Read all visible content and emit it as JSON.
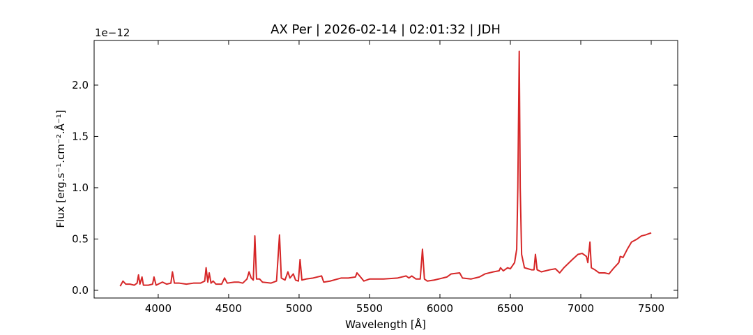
{
  "chart_data": {
    "type": "line",
    "title": "AX Per | 2026-02-14 | 02:01:32 | JDH",
    "xlabel": "Wavelength [Å]",
    "ylabel": "Flux [erg.s⁻¹.cm⁻².Å⁻¹]",
    "y_offset_text": "1e−12",
    "xlim": [
      3545,
      7688
    ],
    "ylim": [
      -0.075,
      2.435
    ],
    "xticks": [
      4000,
      4500,
      5000,
      5500,
      6000,
      6500,
      7000,
      7500
    ],
    "yticks": [
      {
        "value": 0,
        "label": "0.0"
      },
      0.5,
      {
        "value": 1,
        "label": "1.0"
      },
      1.5,
      {
        "value": 2,
        "label": "2.0"
      }
    ],
    "grid": false,
    "series": [
      {
        "color": "#d62728",
        "x": [
          3730,
          3750,
          3770,
          3800,
          3830,
          3850,
          3860,
          3870,
          3885,
          3895,
          3930,
          3960,
          3970,
          3985,
          4030,
          4060,
          4090,
          4101,
          4115,
          4150,
          4200,
          4250,
          4300,
          4330,
          4340,
          4352,
          4362,
          4375,
          4390,
          4410,
          4450,
          4471,
          4490,
          4540,
          4570,
          4600,
          4630,
          4645,
          4660,
          4675,
          4686,
          4698,
          4720,
          4740,
          4800,
          4840,
          4861,
          4874,
          4900,
          4921,
          4935,
          4959,
          4975,
          4995,
          5007,
          5020,
          5050,
          5100,
          5160,
          5175,
          5220,
          5300,
          5350,
          5400,
          5411,
          5430,
          5460,
          5500,
          5550,
          5600,
          5700,
          5760,
          5780,
          5800,
          5830,
          5860,
          5876,
          5890,
          5910,
          5960,
          6050,
          6080,
          6140,
          6160,
          6220,
          6280,
          6320,
          6380,
          6420,
          6430,
          6450,
          6480,
          6500,
          6530,
          6545,
          6553,
          6563,
          6570,
          6580,
          6600,
          6650,
          6668,
          6678,
          6690,
          6720,
          6780,
          6820,
          6850,
          6880,
          6940,
          6980,
          7010,
          7040,
          7050,
          7065,
          7075,
          7100,
          7130,
          7170,
          7200,
          7230,
          7270,
          7280,
          7300,
          7330,
          7360,
          7400,
          7430,
          7460,
          7480,
          7500
        ],
        "values": [
          0.04,
          0.09,
          0.06,
          0.06,
          0.05,
          0.07,
          0.15,
          0.06,
          0.13,
          0.05,
          0.05,
          0.06,
          0.13,
          0.05,
          0.08,
          0.06,
          0.07,
          0.18,
          0.07,
          0.07,
          0.06,
          0.07,
          0.07,
          0.09,
          0.22,
          0.08,
          0.17,
          0.07,
          0.09,
          0.06,
          0.06,
          0.12,
          0.07,
          0.08,
          0.08,
          0.07,
          0.11,
          0.18,
          0.12,
          0.1,
          0.53,
          0.11,
          0.11,
          0.08,
          0.07,
          0.09,
          0.54,
          0.12,
          0.1,
          0.18,
          0.12,
          0.16,
          0.1,
          0.09,
          0.3,
          0.1,
          0.11,
          0.12,
          0.14,
          0.08,
          0.09,
          0.12,
          0.12,
          0.13,
          0.17,
          0.14,
          0.09,
          0.11,
          0.11,
          0.11,
          0.12,
          0.14,
          0.12,
          0.14,
          0.11,
          0.11,
          0.4,
          0.11,
          0.09,
          0.1,
          0.13,
          0.16,
          0.17,
          0.12,
          0.11,
          0.13,
          0.16,
          0.18,
          0.19,
          0.22,
          0.19,
          0.22,
          0.21,
          0.27,
          0.4,
          1.0,
          2.33,
          1.0,
          0.35,
          0.22,
          0.2,
          0.2,
          0.35,
          0.2,
          0.18,
          0.2,
          0.21,
          0.17,
          0.22,
          0.3,
          0.35,
          0.36,
          0.33,
          0.27,
          0.47,
          0.22,
          0.2,
          0.17,
          0.17,
          0.16,
          0.21,
          0.27,
          0.33,
          0.32,
          0.4,
          0.47,
          0.5,
          0.53,
          0.54,
          0.55,
          0.56
        ]
      }
    ]
  }
}
